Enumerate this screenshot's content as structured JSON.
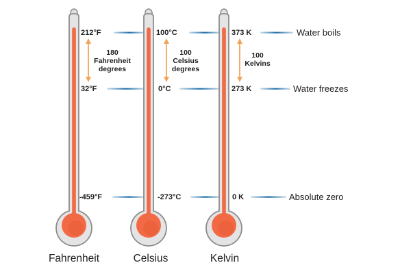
{
  "scales": [
    {
      "name": "Fahrenheit",
      "boiling": "212°F",
      "freezing": "32°F",
      "absolute_zero": "-459°F",
      "interval_note": [
        "180",
        "Fahrenheit",
        "degrees"
      ]
    },
    {
      "name": "Celsius",
      "boiling": "100°C",
      "freezing": "0°C",
      "absolute_zero": "-273°C",
      "interval_note": [
        "100",
        "Celsius",
        "degrees"
      ]
    },
    {
      "name": "Kelvin",
      "boiling": "373 K",
      "freezing": "273 K",
      "absolute_zero": "0 K",
      "interval_note": [
        "100",
        "Kelvins"
      ]
    }
  ],
  "events": {
    "boiling": "Water boils",
    "freezing": "Water freezes",
    "absolute_zero": "Absolute zero"
  },
  "colors": {
    "mercury": "#f26a45",
    "mercury_dark": "#d94f2c",
    "glass": "#e4e4e4",
    "glass_outline": "#8c8c8c",
    "level_line": "#1f6ea8",
    "arrow": "#f0a55a",
    "text": "#1e1e1e"
  }
}
